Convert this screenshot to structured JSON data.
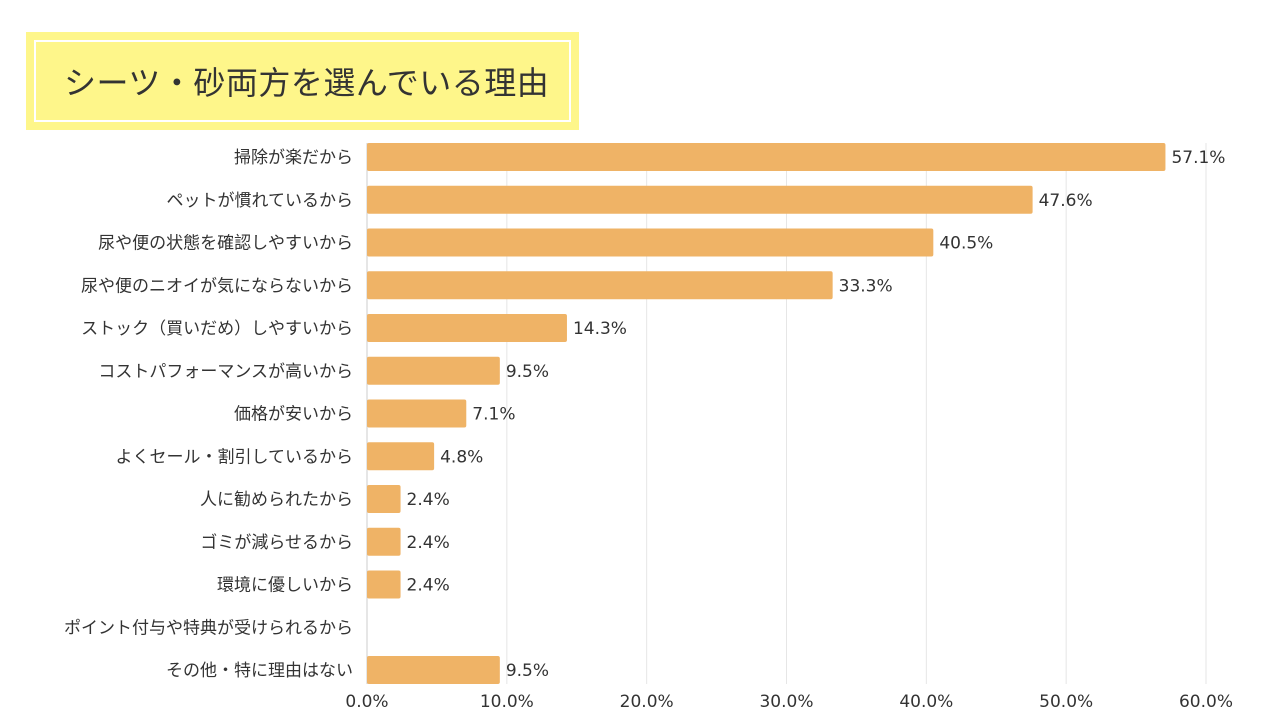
{
  "chart_data": {
    "type": "bar",
    "orientation": "horizontal",
    "title": "シーツ・砂両方を選んでいる理由",
    "categories": [
      "掃除が楽だから",
      "ペットが慣れているから",
      "尿や便の状態を確認しやすいから",
      "尿や便のニオイが気にならないから",
      "ストック（買いだめ）しやすいから",
      "コストパフォーマンスが高いから",
      "価格が安いから",
      "よくセール・割引しているから",
      "人に勧められたから",
      "ゴミが減らせるから",
      "環境に優しいから",
      "ポイント付与や特典が受けられるから",
      "その他・特に理由はない"
    ],
    "values": [
      57.1,
      47.6,
      40.5,
      33.3,
      14.3,
      9.5,
      7.1,
      4.8,
      2.4,
      2.4,
      2.4,
      0,
      9.5
    ],
    "value_labels": [
      "57.1%",
      "47.6%",
      "40.5%",
      "33.3%",
      "14.3%",
      "9.5%",
      "7.1%",
      "4.8%",
      "2.4%",
      "2.4%",
      "2.4%",
      "",
      "9.5%"
    ],
    "xlim": [
      0,
      60
    ],
    "xticks": [
      0,
      10,
      20,
      30,
      40,
      50,
      60
    ],
    "xtick_labels": [
      "0.0%",
      "10.0%",
      "20.0%",
      "30.0%",
      "40.0%",
      "50.0%",
      "60.0%"
    ],
    "grid": true,
    "legend": "none",
    "bar_color": "#efb366",
    "grid_color": "#e6e6e6",
    "title_bg_color": "#fef68a"
  }
}
